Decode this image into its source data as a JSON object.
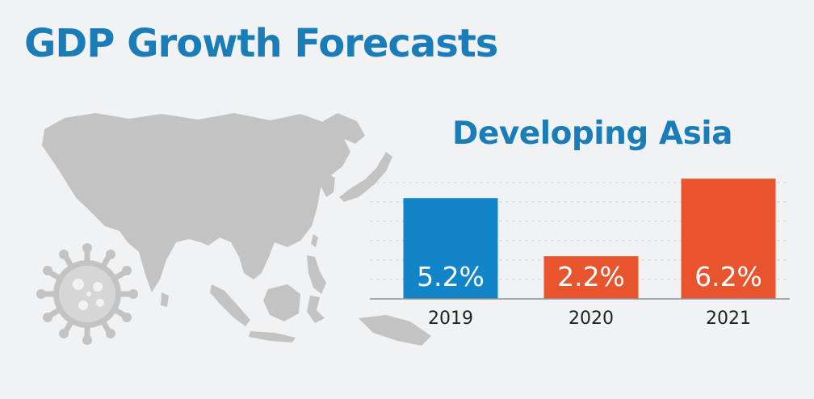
{
  "title": "GDP Growth Forecasts",
  "colors": {
    "title": "#1a7db8",
    "map": "#c3c3c3",
    "bar_2019": "#1185c8",
    "bar_forecast": "#e8542e"
  },
  "chart_data": {
    "type": "bar",
    "title": "Developing Asia",
    "categories": [
      "2019",
      "2020",
      "2021"
    ],
    "values": [
      5.2,
      2.2,
      6.2
    ],
    "value_labels": [
      "5.2%",
      "2.2%",
      "6.2%"
    ],
    "ylim": [
      0,
      7
    ],
    "grid": true,
    "xlabel": "",
    "ylabel": ""
  }
}
